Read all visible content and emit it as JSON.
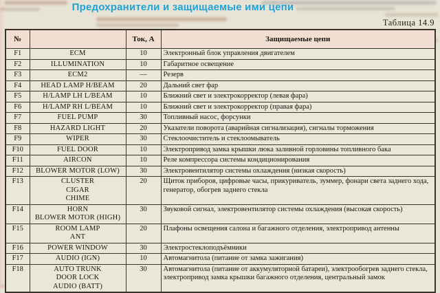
{
  "page": {
    "title": "Предохранители и защищаемые ими цепи",
    "table_label": "Таблица 14.9"
  },
  "colors": {
    "title_accent": "#1ea3d8",
    "page_background": "#e8e4d5",
    "header_row_background": "#f2ded1",
    "row_background": "#eae7d8",
    "table_border": "#35332a"
  },
  "table": {
    "headers": {
      "num": "№",
      "name": "",
      "current": "Ток, А",
      "circuits": "Защищаемые цепи"
    },
    "rows": [
      {
        "num": "F1",
        "name": "ECM",
        "current": "10",
        "circuits": "Электронный блок управления двигателем"
      },
      {
        "num": "F2",
        "name": "ILLUMINATION",
        "current": "10",
        "circuits": "Габаритное освещение"
      },
      {
        "num": "F3",
        "name": "ECM2",
        "current": "—",
        "circuits": "Резерв"
      },
      {
        "num": "F4",
        "name": "HEAD LAMP H/BEAM",
        "current": "20",
        "circuits": "Дальний свет фар"
      },
      {
        "num": "F5",
        "name": "H/LAMP LH L/BEAM",
        "current": "10",
        "circuits": "Ближний свет и электрокорректор (левая фара)"
      },
      {
        "num": "F6",
        "name": "H/LAMP RH L/BEAM",
        "current": "10",
        "circuits": "Ближний свет и электрокорректор (правая фара)"
      },
      {
        "num": "F7",
        "name": "FUEL PUMP",
        "current": "30",
        "circuits": "Топливный насос, форсунки"
      },
      {
        "num": "F8",
        "name": "HAZARD LIGHT",
        "current": "20",
        "circuits": "Указатели поворота (аварийная сигнализация), сигналы торможения"
      },
      {
        "num": "F9",
        "name": "WIPER",
        "current": "30",
        "circuits": "Стеклоочиститель и стеклоомыватель"
      },
      {
        "num": "F10",
        "name": "FUEL DOOR",
        "current": "10",
        "circuits": "Электропривод замка крышки люка заливной горловины топливного бака"
      },
      {
        "num": "F11",
        "name": "AIRCON",
        "current": "10",
        "circuits": "Реле компрессора системы кондиционирования"
      },
      {
        "num": "F12",
        "name": "BLOWER MOTOR (LOW)",
        "current": "30",
        "circuits": "Электровентилятор системы охлаждения (низкая скорость)"
      },
      {
        "num": "F13",
        "name": "CLUSTER\nCIGAR\nCHIME",
        "current": "20",
        "circuits": "Щиток приборов, цифровые часы, прикуриватель, зуммер, фонари света заднего хода, генератор, обогрев заднего стекла"
      },
      {
        "num": "F14",
        "name": "HORN\nBLOWER MOTOR (HIGH)",
        "current": "30",
        "circuits": "Звуковой сигнал, электровентилятор системы охлаждения (высокая скорость)"
      },
      {
        "num": "F15",
        "name": "ROOM LAMP\nANT",
        "current": "20",
        "circuits": "Плафоны освещения салона и багажного отделения, электропривод антенны"
      },
      {
        "num": "F16",
        "name": "POWER WINDOW",
        "current": "30",
        "circuits": "Электростеклоподъёмники"
      },
      {
        "num": "F17",
        "name": "AUDIO (IGN)",
        "current": "10",
        "circuits": "Автомагнитола (питание от замка зажигания)"
      },
      {
        "num": "F18",
        "name": "AUTO TRUNK\nDOOR LOCK\nAUDIO (BATT)",
        "current": "30",
        "circuits": "Автомагнитола (питание от аккумуляторной батареи), электрообогрев заднего стекла, электропривод замка крышки багажного отделения, центральный замок"
      }
    ]
  }
}
